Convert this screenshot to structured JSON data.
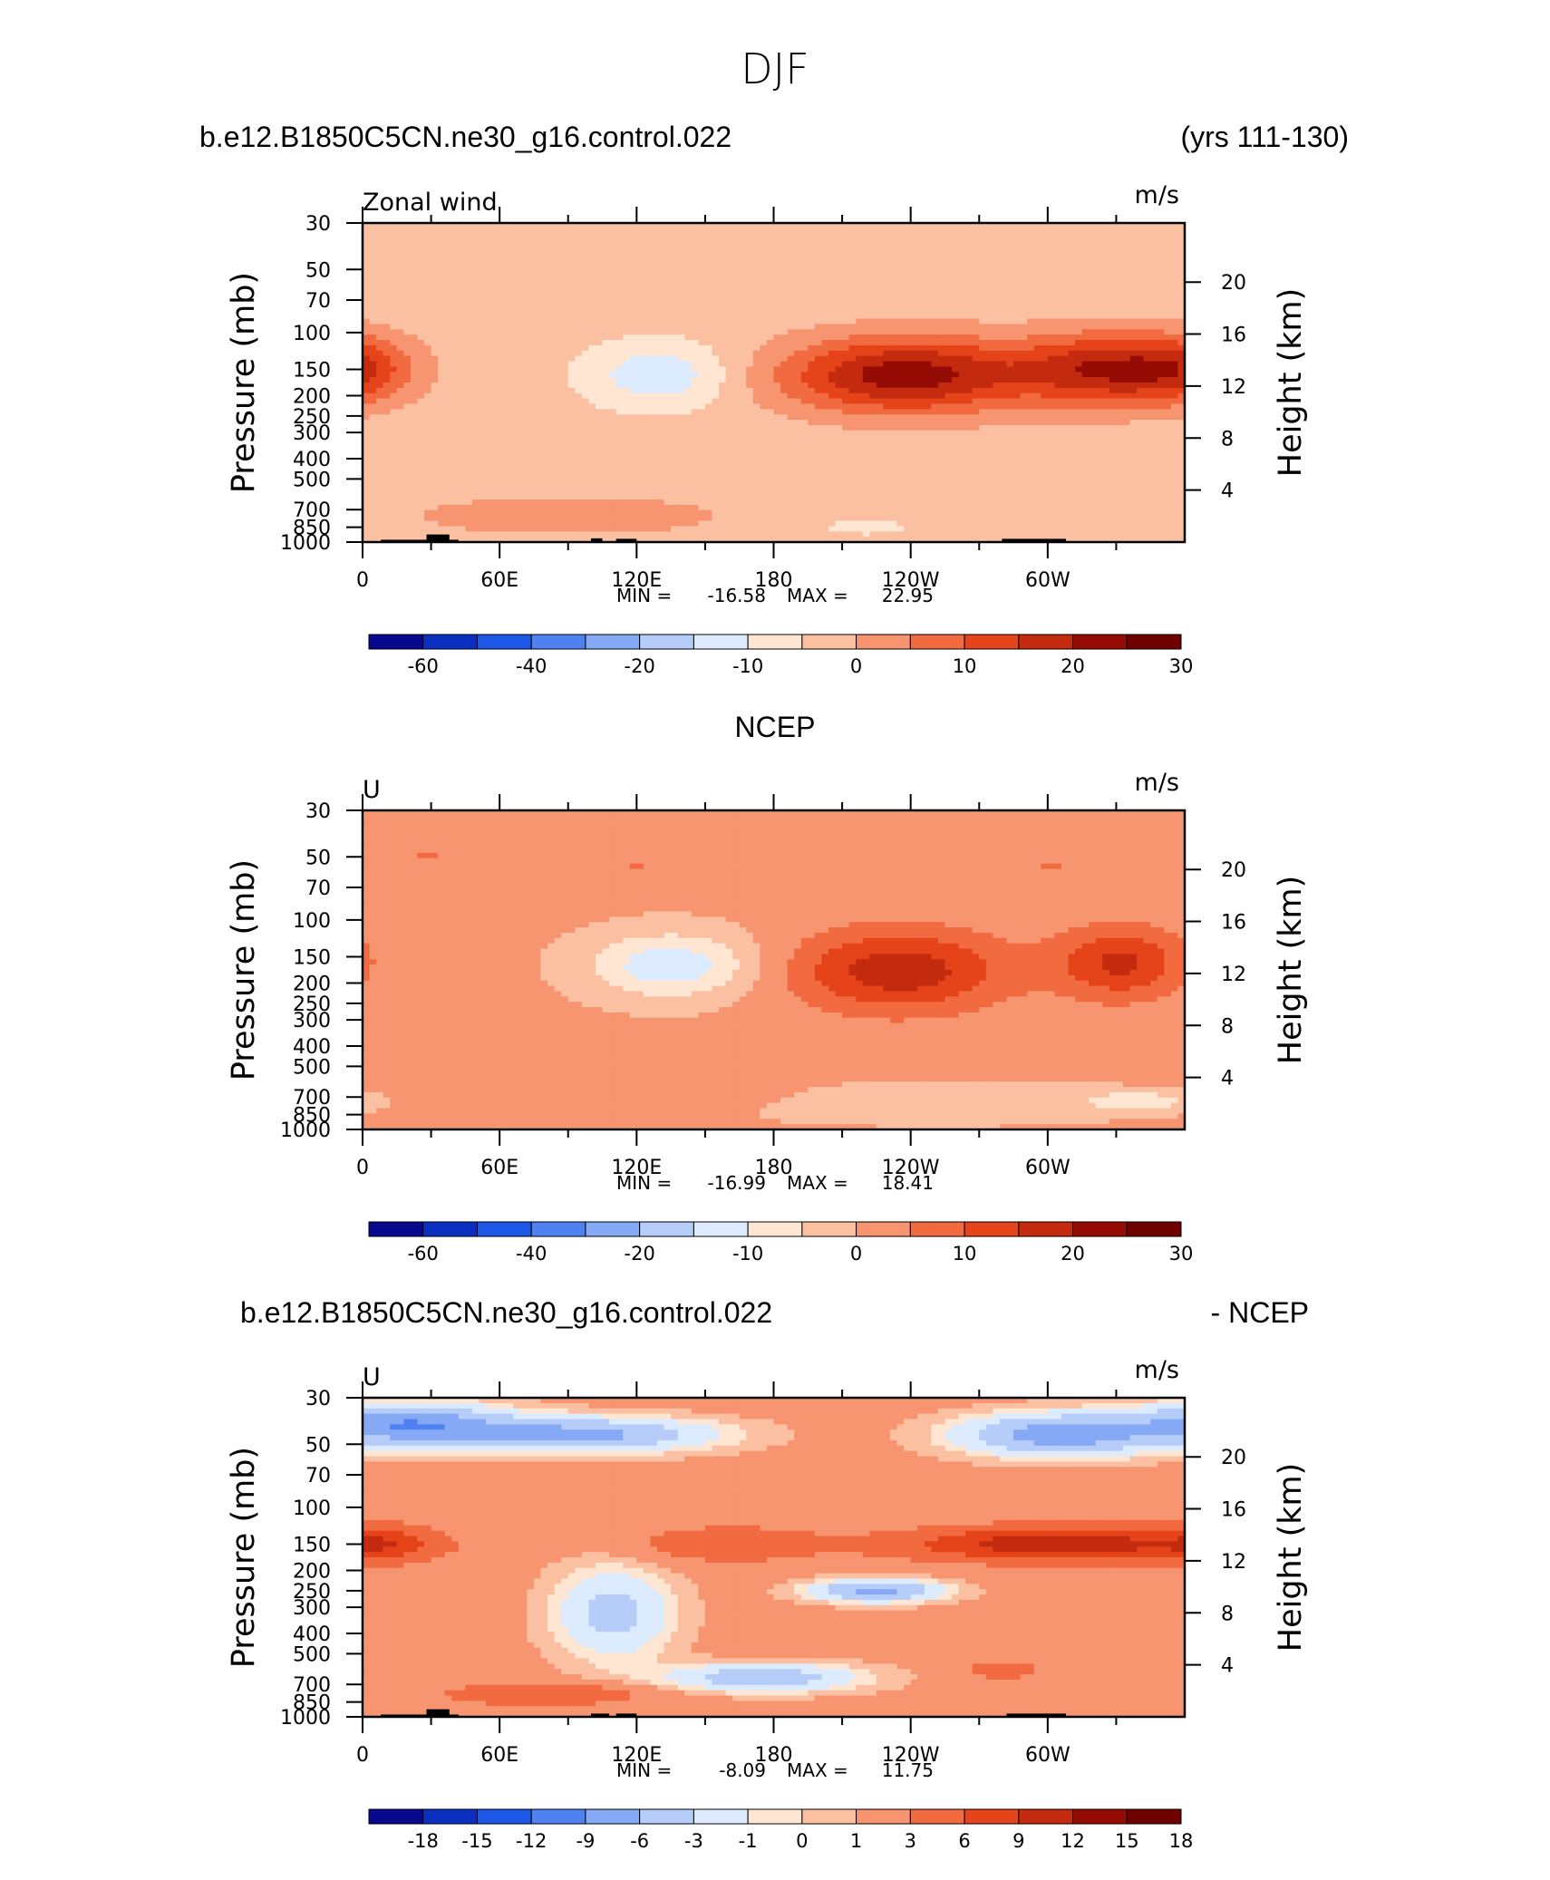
{
  "figure": {
    "title": "DJF",
    "units": "m/s"
  },
  "colormaps": {
    "abs": [
      "#08088f",
      "#0b2fc1",
      "#1e58e6",
      "#4f82f0",
      "#86a9f6",
      "#b6cdf9",
      "#dcebfd",
      "#fee6d3",
      "#fbc0a1",
      "#f79570",
      "#f16a40",
      "#e5431a",
      "#c42a0e",
      "#950c05",
      "#6e0000"
    ],
    "diff": [
      "#08088f",
      "#0b2fc1",
      "#1e58e6",
      "#4f82f0",
      "#86a9f6",
      "#b6cdf9",
      "#dcebfd",
      "#fee6d3",
      "#fbc0a1",
      "#f79570",
      "#f16a40",
      "#e5431a",
      "#c42a0e",
      "#950c05",
      "#6e0000"
    ]
  },
  "chart_data": [
    {
      "type": "heatmap",
      "header_left": "b.e12.B1850C5CN.ne30_g16.control.022",
      "header_right": "(yrs 111-130)",
      "label_left": "Zonal wind",
      "label_right": "m/s",
      "xlabel": "",
      "ylabel": "Pressure (mb)",
      "ylabel_right": "Height (km)",
      "x_ticks": [
        "0",
        "60E",
        "120E",
        "180",
        "120W",
        "60W"
      ],
      "y_ticks": [
        "30",
        "50",
        "70",
        "100",
        "150",
        "200",
        "250",
        "300",
        "400",
        "500",
        "700",
        "850",
        "1000"
      ],
      "y_ticks_right": [
        "20",
        "16",
        "12",
        "8",
        "4"
      ],
      "stats": {
        "min_label": "MIN =",
        "min": "-16.58",
        "max_label": "MAX =",
        "max": "22.95"
      },
      "colorbar": {
        "labels": [
          "-60",
          "-40",
          "-20",
          "-10",
          "0",
          "10",
          "20",
          "30"
        ],
        "label_positions": [
          1,
          3,
          5,
          7,
          9,
          11,
          13,
          15
        ]
      },
      "ylim_mb": [
        1000,
        30
      ],
      "xlim_deg": [
        0,
        360
      ],
      "fields": [
        {
          "lon": 0,
          "p": 150,
          "value": 5,
          "spread_lon": 14,
          "spread_p": 0.35
        },
        {
          "lon": 130,
          "p": 160,
          "value": -14,
          "spread_lon": 22,
          "spread_p": 0.35
        },
        {
          "lon": 237,
          "p": 160,
          "value": 22.95,
          "spread_lon": 38,
          "spread_p": 0.42
        },
        {
          "lon": 330,
          "p": 150,
          "value": 20,
          "spread_lon": 30,
          "spread_p": 0.4
        },
        {
          "lon": 90,
          "p": 750,
          "value": 5,
          "spread_lon": 45,
          "spread_p": 0.2
        },
        {
          "lon": 220,
          "p": 850,
          "value": -8,
          "spread_lon": 12,
          "spread_p": 0.08
        }
      ],
      "background_value": -3,
      "topography": [
        {
          "lon_start": 8,
          "lon_end": 42,
          "p_top": 975
        },
        {
          "lon_start": 28,
          "lon_end": 38,
          "p_top": 920
        },
        {
          "lon_start": 100,
          "lon_end": 105,
          "p_top": 960
        },
        {
          "lon_start": 111,
          "lon_end": 120,
          "p_top": 965
        },
        {
          "lon_start": 280,
          "lon_end": 308,
          "p_top": 965
        }
      ],
      "diverging": false,
      "field_min": -16.58,
      "field_max": 22.95,
      "levels": [
        -70,
        -60,
        -50,
        -40,
        -30,
        -20,
        -15,
        -10,
        -5,
        0,
        5,
        10,
        15,
        20,
        25,
        30
      ]
    },
    {
      "type": "heatmap",
      "header_left": "NCEP",
      "label_left": "U",
      "label_right": "m/s",
      "xlabel": "",
      "ylabel": "Pressure (mb)",
      "ylabel_right": "Height (km)",
      "x_ticks": [
        "0",
        "60E",
        "120E",
        "180",
        "120W",
        "60W"
      ],
      "y_ticks": [
        "30",
        "50",
        "70",
        "100",
        "150",
        "200",
        "250",
        "300",
        "400",
        "500",
        "700",
        "850",
        "1000"
      ],
      "y_ticks_right": [
        "20",
        "16",
        "12",
        "8",
        "4"
      ],
      "stats": {
        "min_label": "MIN =",
        "min": "-16.99",
        "max_label": "MAX =",
        "max": "18.41"
      },
      "colorbar": {
        "labels": [
          "-60",
          "-40",
          "-20",
          "-10",
          "0",
          "10",
          "20",
          "30"
        ],
        "label_positions": [
          1,
          3,
          5,
          7,
          9,
          11,
          13,
          15
        ]
      },
      "ylim_mb": [
        1000,
        30
      ],
      "xlim_deg": [
        0,
        360
      ],
      "fields": [
        {
          "lon": 30,
          "p": 50,
          "value": 5,
          "spread_lon": 30,
          "spread_p": 0.18
        },
        {
          "lon": 120,
          "p": 55,
          "value": 5,
          "spread_lon": 30,
          "spread_p": 0.18
        },
        {
          "lon": 135,
          "p": 165,
          "value": -14,
          "spread_lon": 25,
          "spread_p": 0.35
        },
        {
          "lon": 235,
          "p": 175,
          "value": 18.41,
          "spread_lon": 33,
          "spread_p": 0.45
        },
        {
          "lon": 332,
          "p": 160,
          "value": 16,
          "spread_lon": 20,
          "spread_p": 0.4
        },
        {
          "lon": 300,
          "p": 55,
          "value": 5,
          "spread_lon": 30,
          "spread_p": 0.2
        },
        {
          "lon": 120,
          "p": 700,
          "value": 5,
          "spread_lon": 55,
          "spread_p": 0.18
        },
        {
          "lon": 250,
          "p": 750,
          "value": -5,
          "spread_lon": 60,
          "spread_p": 0.2
        },
        {
          "lon": 340,
          "p": 730,
          "value": -8,
          "spread_lon": 15,
          "spread_p": 0.1
        }
      ],
      "background_value": 1,
      "topography": [],
      "diverging": false,
      "field_min": -16.99,
      "field_max": 18.41,
      "levels": [
        -70,
        -60,
        -50,
        -40,
        -30,
        -20,
        -15,
        -10,
        -5,
        0,
        5,
        10,
        15,
        20,
        25,
        30
      ]
    },
    {
      "type": "heatmap",
      "header_left": "b.e12.B1850C5CN.ne30_g16.control.022",
      "header_right": "- NCEP",
      "label_left": "U",
      "label_right": "m/s",
      "xlabel": "",
      "ylabel": "Pressure (mb)",
      "ylabel_right": "Height (km)",
      "x_ticks": [
        "0",
        "60E",
        "120E",
        "180",
        "120W",
        "60W"
      ],
      "y_ticks": [
        "30",
        "50",
        "70",
        "100",
        "150",
        "200",
        "250",
        "300",
        "400",
        "500",
        "700",
        "850",
        "1000"
      ],
      "y_ticks_right": [
        "20",
        "16",
        "12",
        "8",
        "4"
      ],
      "stats": {
        "min_label": "MIN =",
        "min": "-8.09",
        "max_label": "MAX =",
        "max": "11.75"
      },
      "colorbar": {
        "labels": [
          "-18",
          "-15",
          "-12",
          "-9",
          "-6",
          "-3",
          "-1",
          "0",
          "1",
          "3",
          "6",
          "9",
          "12",
          "15",
          "18"
        ],
        "label_positions": [
          1,
          2,
          3,
          4,
          5,
          6,
          7,
          8,
          9,
          10,
          11,
          12,
          13,
          14,
          15
        ]
      },
      "ylim_mb": [
        1000,
        30
      ],
      "xlim_deg": [
        0,
        360
      ],
      "fields": [
        {
          "lon": 20,
          "p": 40,
          "value": -8.09,
          "spread_lon": 30,
          "spread_p": 0.22
        },
        {
          "lon": 95,
          "p": 45,
          "value": -7,
          "spread_lon": 40,
          "spread_p": 0.18
        },
        {
          "lon": 305,
          "p": 45,
          "value": -8,
          "spread_lon": 30,
          "spread_p": 0.22
        },
        {
          "lon": 10,
          "p": 150,
          "value": 6,
          "spread_lon": 15,
          "spread_p": 0.2
        },
        {
          "lon": 160,
          "p": 150,
          "value": 5,
          "spread_lon": 30,
          "spread_p": 0.2
        },
        {
          "lon": 305,
          "p": 150,
          "value": 11.75,
          "spread_lon": 45,
          "spread_p": 0.18
        },
        {
          "lon": 225,
          "p": 250,
          "value": -7,
          "spread_lon": 20,
          "spread_p": 0.12
        },
        {
          "lon": 110,
          "p": 320,
          "value": -4,
          "spread_lon": 18,
          "spread_p": 0.5
        },
        {
          "lon": 175,
          "p": 650,
          "value": -5,
          "spread_lon": 30,
          "spread_p": 0.15
        },
        {
          "lon": 80,
          "p": 780,
          "value": 6,
          "spread_lon": 30,
          "spread_p": 0.12
        },
        {
          "lon": 280,
          "p": 600,
          "value": 6,
          "spread_lon": 10,
          "spread_p": 0.08
        }
      ],
      "background_value": 1.5,
      "topography": [
        {
          "lon_start": 8,
          "lon_end": 42,
          "p_top": 975
        },
        {
          "lon_start": 28,
          "lon_end": 38,
          "p_top": 920
        },
        {
          "lon_start": 100,
          "lon_end": 108,
          "p_top": 965
        },
        {
          "lon_start": 111,
          "lon_end": 120,
          "p_top": 965
        },
        {
          "lon_start": 282,
          "lon_end": 308,
          "p_top": 965
        }
      ],
      "diverging": true,
      "field_min": -8.09,
      "field_max": 11.75,
      "levels": [
        -21,
        -18,
        -15,
        -12,
        -9,
        -6,
        -3,
        -1,
        0,
        1,
        3,
        6,
        9,
        12,
        15,
        18
      ]
    }
  ]
}
